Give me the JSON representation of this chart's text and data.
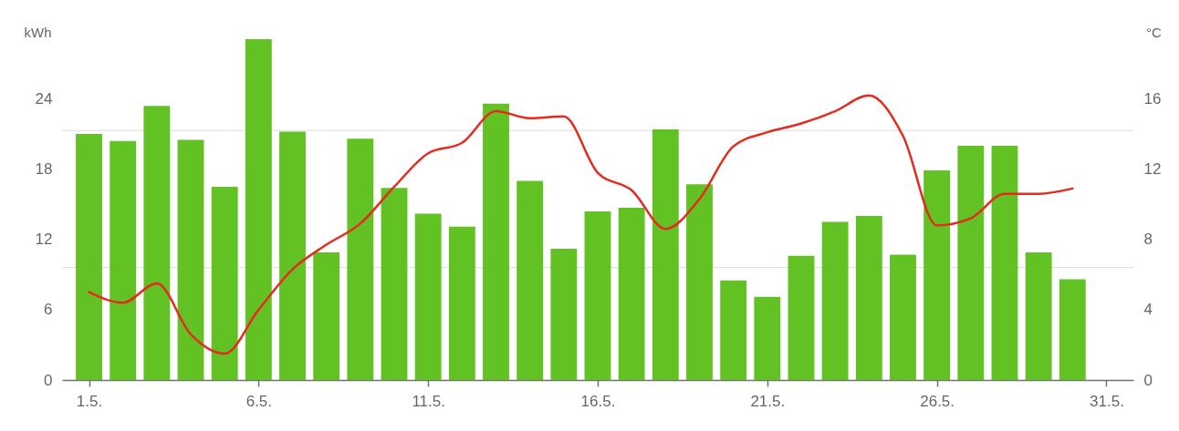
{
  "chart_data": {
    "type": "bar",
    "ylabel": "kWh",
    "y2label": "°C",
    "categories": [
      "1.5.",
      null,
      null,
      null,
      null,
      "6.5.",
      null,
      null,
      null,
      null,
      "11.5.",
      null,
      null,
      null,
      null,
      "16.5.",
      null,
      null,
      null,
      null,
      "21.5.",
      null,
      null,
      null,
      null,
      "26.5.",
      null,
      null,
      null,
      null,
      "31.5."
    ],
    "ylim": [
      0,
      29.1
    ],
    "yticks": [
      0,
      6,
      12,
      18,
      24
    ],
    "y2lim": [
      0,
      19.4
    ],
    "y2ticks": [
      0,
      4,
      8,
      12,
      16
    ],
    "series": [
      {
        "color": "#63c223",
        "values": [
          21.0,
          20.4,
          23.4,
          20.5,
          16.5,
          29.1,
          21.2,
          10.9,
          20.6,
          16.4,
          14.2,
          13.1,
          23.6,
          17.0,
          11.2,
          14.4,
          14.7,
          21.4,
          16.7,
          8.5,
          7.1,
          10.6,
          13.5,
          14.0,
          10.7,
          17.9,
          20.0,
          20.0,
          10.9,
          8.6,
          null
        ]
      },
      {
        "type": "line",
        "axis": "y2",
        "color": "#e52b1f",
        "values": [
          5.0,
          4.4,
          5.5,
          2.6,
          1.5,
          4.0,
          6.3,
          7.7,
          8.9,
          11.0,
          12.9,
          13.5,
          15.3,
          14.9,
          15.0,
          11.8,
          10.8,
          8.6,
          10.3,
          13.3,
          14.1,
          14.6,
          15.3,
          16.2,
          13.9,
          8.8,
          9.2,
          10.6,
          10.6,
          10.9,
          null
        ]
      }
    ],
    "ref_lines": [
      {
        "axis": "y",
        "value": 21.3,
        "color": "#dddddd"
      },
      {
        "axis": "y",
        "value": 9.6,
        "color": "#dddddd"
      }
    ]
  }
}
